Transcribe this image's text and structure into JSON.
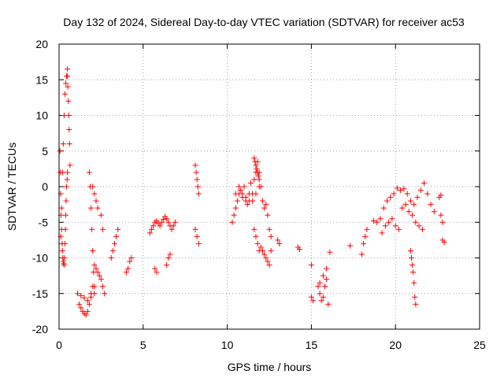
{
  "chart_data": {
    "type": "scatter",
    "title": "Day 132 of 2024, Sidereal Day-to-day VTEC variation (SDTVAR) for receiver ac53",
    "xlabel": "GPS time / hours",
    "ylabel": "SDTVAR / TECUs",
    "xlim": [
      0,
      25
    ],
    "ylim": [
      -20,
      20
    ],
    "xticks": [
      0,
      5,
      10,
      15,
      20,
      25
    ],
    "yticks": [
      -20,
      -15,
      -10,
      -5,
      0,
      5,
      10,
      15,
      20
    ],
    "grid": true,
    "marker": "+",
    "color": "#ff0000",
    "series": [
      {
        "name": "SDTVAR",
        "x": [
          0.05,
          0.08,
          0.1,
          0.12,
          0.15,
          0.18,
          0.2,
          0.22,
          0.25,
          0.28,
          0.3,
          0.32,
          0.35,
          0.38,
          0.4,
          0.42,
          0.45,
          0.48,
          0.5,
          0.1,
          0.15,
          0.2,
          0.25,
          0.3,
          0.35,
          0.4,
          0.45,
          0.5,
          0.5,
          0.52,
          0.55,
          0.58,
          0.6,
          0.62,
          0.65,
          1.1,
          1.2,
          1.3,
          1.4,
          1.5,
          1.6,
          1.7,
          1.8,
          1.9,
          2.0,
          1.3,
          1.5,
          1.7,
          1.9,
          2.1,
          1.8,
          1.85,
          1.9,
          1.95,
          2.0,
          2.05,
          2.1,
          2.1,
          2.2,
          2.3,
          2.4,
          2.5,
          2.6,
          2.7,
          2.0,
          2.1,
          2.2,
          2.3,
          2.5,
          2.6,
          3.1,
          3.2,
          3.3,
          3.4,
          3.5,
          4.0,
          4.1,
          4.2,
          4.3,
          5.4,
          5.5,
          5.6,
          5.7,
          5.8,
          5.9,
          6.0,
          6.1,
          6.2,
          6.3,
          6.4,
          6.5,
          6.6,
          6.7,
          6.8,
          6.9,
          5.7,
          5.8,
          6.4,
          6.5,
          6.6,
          8.1,
          8.15,
          8.2,
          8.25,
          8.3,
          8.1,
          8.2,
          8.3,
          10.3,
          10.4,
          10.5,
          10.6,
          10.7,
          10.8,
          10.9,
          11.0,
          11.1,
          11.2,
          11.3,
          11.4,
          11.5,
          11.6,
          11.7,
          11.8,
          11.9,
          12.0,
          12.1,
          12.2,
          12.3,
          12.4,
          12.5,
          12.6,
          10.5,
          10.7,
          10.9,
          11.1,
          11.3,
          11.5,
          11.7,
          11.9,
          11.6,
          11.7,
          11.8,
          11.9,
          12.0,
          12.1,
          12.2,
          12.3,
          12.4,
          12.5,
          12.6,
          11.6,
          11.65,
          11.7,
          11.75,
          11.8,
          11.85,
          11.9,
          13.0,
          13.1,
          14.2,
          14.3,
          15.0,
          15.1,
          15.0,
          15.4,
          15.5,
          15.6,
          15.7,
          15.8,
          15.9,
          16.0,
          15.5,
          15.7,
          15.9,
          16.1,
          17.3,
          18.0,
          18.1,
          18.2,
          18.3,
          18.7,
          18.9,
          19.1,
          19.3,
          19.5,
          19.7,
          19.9,
          20.1,
          20.3,
          20.5,
          20.7,
          20.9,
          21.1,
          21.3,
          21.5,
          21.7,
          21.9,
          22.1,
          22.3,
          19.2,
          19.4,
          19.6,
          19.8,
          20.0,
          20.2,
          20.9,
          20.95,
          21.0,
          21.05,
          21.1,
          21.15,
          21.2,
          20.4,
          20.6,
          20.8,
          21.0,
          21.2,
          21.4,
          21.6,
          22.6,
          22.7,
          22.8,
          22.9,
          22.7,
          22.8
        ],
        "y": [
          5,
          2,
          -1,
          -4,
          -6,
          -8,
          -9,
          -10,
          -10.5,
          -10.8,
          -11,
          -10,
          -8,
          -6,
          -4,
          -2,
          0,
          1,
          2,
          -7,
          -3,
          2,
          6,
          10,
          13,
          14.5,
          15.5,
          16.5,
          15.5,
          14,
          12,
          10,
          8,
          6,
          3,
          -15,
          -16.5,
          -17,
          -17.5,
          -17.8,
          -18,
          -17.5,
          -16.5,
          -15,
          -14,
          -15.3,
          -15.6,
          -16,
          -15.5,
          -15,
          2,
          0,
          -3,
          -6,
          -9,
          -12,
          -14,
          -11,
          -11.5,
          -12,
          -12.5,
          -13,
          -14,
          -15,
          0,
          -1,
          -2,
          -3,
          -4,
          -6,
          -10,
          -9,
          -8,
          -7,
          -6,
          -12,
          -11.5,
          -10.5,
          -10,
          -6.5,
          -6,
          -5.5,
          -5,
          -4.8,
          -5.2,
          -5.5,
          -5,
          -4.6,
          -4.2,
          -4.5,
          -5,
          -5.5,
          -6,
          -5.5,
          -5,
          -11.5,
          -12,
          -11,
          -10,
          -9.5,
          3,
          2,
          1,
          0,
          -1,
          -6,
          -7,
          -8,
          -5,
          -4,
          -3,
          -2,
          -1,
          -0.5,
          -1,
          0,
          -1.5,
          -2.5,
          -2,
          0.5,
          -1,
          1,
          2,
          3.5,
          2,
          0,
          -2,
          -3,
          -2.5,
          -4,
          -6,
          -7,
          -1,
          0,
          -1.5,
          -2,
          -1,
          -2,
          -1,
          0,
          -6,
          -7,
          -8,
          -9,
          -8.5,
          -9,
          -9.5,
          -10,
          -10.5,
          -11,
          -9,
          4,
          3.5,
          3,
          2.5,
          2,
          1.5,
          1,
          -7.5,
          -8,
          -8.5,
          -8.8,
          -15.5,
          -16,
          -11,
          -14,
          -15,
          -16,
          -15.5,
          -14,
          -13,
          -16.5,
          -13.5,
          -12.5,
          -11.5,
          -9.2,
          -8.3,
          -9.5,
          -8,
          -7,
          -6,
          -4.8,
          -5,
          -4.5,
          -3,
          -2,
          -1.5,
          -1,
          -0.2,
          -0.5,
          -0.3,
          -1,
          -2,
          -2.5,
          -1.5,
          -0.5,
          0.5,
          -1,
          -2.5,
          -3.5,
          -6.5,
          -5.5,
          -5,
          -4.5,
          -5.5,
          -6,
          -9,
          -10,
          -11,
          -12,
          -13.5,
          -15.5,
          -16.5,
          -3,
          -2.5,
          -3.5,
          -4,
          -5,
          -5.5,
          -6,
          -1.5,
          -1.2,
          -7.5,
          -7.8,
          -4,
          -5
        ]
      }
    ]
  }
}
